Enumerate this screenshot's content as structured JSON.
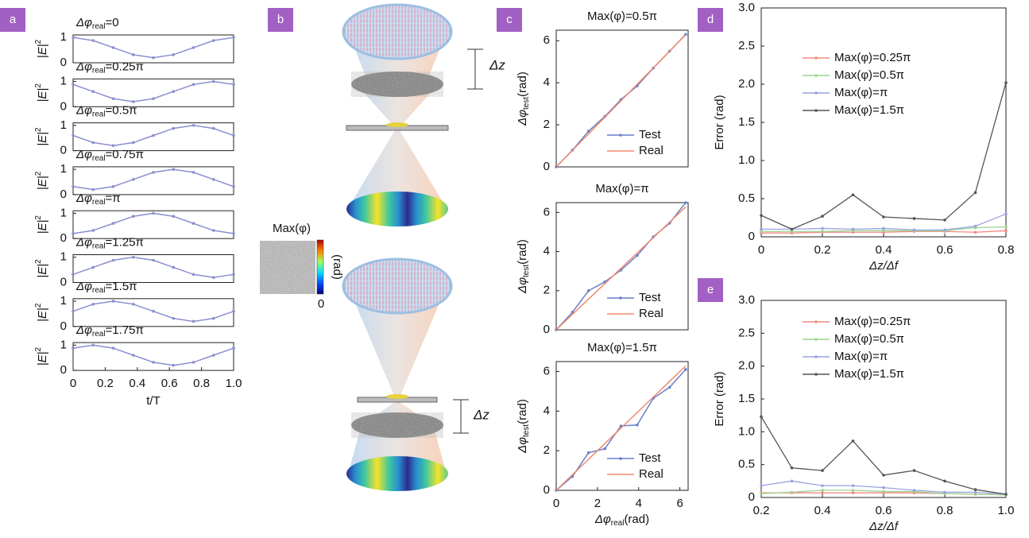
{
  "panels": [
    "a",
    "b",
    "c",
    "d",
    "e"
  ],
  "diagram": {
    "colorbar_title": "Max(φ)",
    "colorbar_unit": "(rad)",
    "colorbar_min": "0",
    "dz_labels": [
      "Δz",
      "Δz"
    ]
  },
  "chart_data": [
    {
      "type": "line",
      "title": {
        "text": "Δφ",
        "sub": "real",
        "after": "=0"
      },
      "ylabel": {
        "text": "|E|",
        "sup": "2"
      },
      "x": [
        0,
        0.125,
        0.25,
        0.375,
        0.5,
        0.625,
        0.75,
        0.875,
        1
      ],
      "values": [
        1,
        0.88,
        0.6,
        0.32,
        0.2,
        0.32,
        0.6,
        0.88,
        1
      ],
      "color": "#8a8fd0",
      "xlim": [
        0,
        1
      ],
      "ylim": [
        0,
        1.1
      ],
      "yticks": [
        0,
        1
      ]
    },
    {
      "type": "line",
      "title": {
        "text": "Δφ",
        "sub": "real",
        "after": "=0.25π"
      },
      "ylabel": {
        "text": "|E|",
        "sup": "2"
      },
      "x": [
        0,
        0.125,
        0.25,
        0.375,
        0.5,
        0.625,
        0.75,
        0.875,
        1
      ],
      "values": [
        0.88,
        0.6,
        0.32,
        0.2,
        0.32,
        0.6,
        0.88,
        1,
        0.88
      ],
      "color": "#8a8fd0",
      "xlim": [
        0,
        1
      ],
      "ylim": [
        0,
        1.1
      ],
      "yticks": [
        0,
        1
      ]
    },
    {
      "type": "line",
      "title": {
        "text": "Δφ",
        "sub": "real",
        "after": "=0.5π"
      },
      "ylabel": {
        "text": "|E|",
        "sup": "2"
      },
      "x": [
        0,
        0.125,
        0.25,
        0.375,
        0.5,
        0.625,
        0.75,
        0.875,
        1
      ],
      "values": [
        0.6,
        0.32,
        0.2,
        0.32,
        0.6,
        0.88,
        1,
        0.88,
        0.6
      ],
      "color": "#8a8fd0",
      "xlim": [
        0,
        1
      ],
      "ylim": [
        0,
        1.1
      ],
      "yticks": [
        0,
        1
      ]
    },
    {
      "type": "line",
      "title": {
        "text": "Δφ",
        "sub": "real",
        "after": "=0.75π"
      },
      "ylabel": {
        "text": "|E|",
        "sup": "2"
      },
      "x": [
        0,
        0.125,
        0.25,
        0.375,
        0.5,
        0.625,
        0.75,
        0.875,
        1
      ],
      "values": [
        0.32,
        0.2,
        0.32,
        0.6,
        0.88,
        1,
        0.88,
        0.6,
        0.32
      ],
      "color": "#8a8fd0",
      "xlim": [
        0,
        1
      ],
      "ylim": [
        0,
        1.1
      ],
      "yticks": [
        0,
        1
      ]
    },
    {
      "type": "line",
      "title": {
        "text": "Δφ",
        "sub": "real",
        "after": "=π"
      },
      "ylabel": {
        "text": "|E|",
        "sup": "2"
      },
      "x": [
        0,
        0.125,
        0.25,
        0.375,
        0.5,
        0.625,
        0.75,
        0.875,
        1
      ],
      "values": [
        0.2,
        0.32,
        0.6,
        0.88,
        1,
        0.88,
        0.6,
        0.32,
        0.2
      ],
      "color": "#8a8fd0",
      "xlim": [
        0,
        1
      ],
      "ylim": [
        0,
        1.1
      ],
      "yticks": [
        0,
        1
      ]
    },
    {
      "type": "line",
      "title": {
        "text": "Δφ",
        "sub": "real",
        "after": "=1.25π"
      },
      "ylabel": {
        "text": "|E|",
        "sup": "2"
      },
      "x": [
        0,
        0.125,
        0.25,
        0.375,
        0.5,
        0.625,
        0.75,
        0.875,
        1
      ],
      "values": [
        0.32,
        0.6,
        0.88,
        1,
        0.88,
        0.6,
        0.32,
        0.2,
        0.32
      ],
      "color": "#8a8fd0",
      "xlim": [
        0,
        1
      ],
      "ylim": [
        0,
        1.1
      ],
      "yticks": [
        0,
        1
      ]
    },
    {
      "type": "line",
      "title": {
        "text": "Δφ",
        "sub": "real",
        "after": "=1.5π"
      },
      "ylabel": {
        "text": "|E|",
        "sup": "2"
      },
      "x": [
        0,
        0.125,
        0.25,
        0.375,
        0.5,
        0.625,
        0.75,
        0.875,
        1
      ],
      "values": [
        0.6,
        0.88,
        1,
        0.88,
        0.6,
        0.32,
        0.2,
        0.32,
        0.6
      ],
      "color": "#8a8fd0",
      "xlim": [
        0,
        1
      ],
      "ylim": [
        0,
        1.1
      ],
      "yticks": [
        0,
        1
      ]
    },
    {
      "type": "line",
      "title": {
        "text": "Δφ",
        "sub": "real",
        "after": "=1.75π"
      },
      "ylabel": {
        "text": "|E|",
        "sup": "2"
      },
      "xlabel": "t/T",
      "x": [
        0,
        0.125,
        0.25,
        0.375,
        0.5,
        0.625,
        0.75,
        0.875,
        1
      ],
      "values": [
        0.88,
        1,
        0.88,
        0.6,
        0.32,
        0.2,
        0.32,
        0.6,
        0.88
      ],
      "color": "#8a8fd0",
      "xlim": [
        0,
        1
      ],
      "ylim": [
        0,
        1.1
      ],
      "yticks": [
        0,
        1
      ],
      "xticks": [
        0,
        0.2,
        0.4,
        0.6,
        0.8,
        {
          "value": 1,
          "label": "1.0"
        }
      ]
    },
    {
      "type": "line",
      "title": "Max(φ)=0.5π",
      "ylabel": {
        "text": "Δφ",
        "sub": "test",
        "after": "(rad)"
      },
      "x": [
        0,
        0.79,
        1.57,
        2.36,
        3.14,
        3.93,
        4.71,
        5.5,
        6.28
      ],
      "legend": "lower right",
      "xlim": [
        0,
        6.4
      ],
      "ylim": [
        0,
        6.5
      ],
      "yticks": [
        0,
        2,
        4,
        6
      ],
      "series": [
        {
          "name": "Test",
          "color": "#6b7fc9",
          "markers": true,
          "values": [
            0,
            0.8,
            1.7,
            2.4,
            3.2,
            3.85,
            4.7,
            5.5,
            6.3
          ]
        },
        {
          "name": "Real",
          "color": "#f08a6e",
          "markers": false,
          "values": [
            0,
            0.79,
            1.57,
            2.36,
            3.14,
            3.93,
            4.71,
            5.5,
            6.28
          ]
        }
      ]
    },
    {
      "type": "line",
      "title": "Max(φ)=π",
      "ylabel": {
        "text": "Δφ",
        "sub": "test",
        "after": "(rad)"
      },
      "x": [
        0,
        0.79,
        1.57,
        2.36,
        3.14,
        3.93,
        4.71,
        5.5,
        6.28
      ],
      "legend": "lower right",
      "xlim": [
        0,
        6.4
      ],
      "ylim": [
        0,
        6.5
      ],
      "yticks": [
        0,
        2,
        4,
        6
      ],
      "series": [
        {
          "name": "Test",
          "color": "#6b7fc9",
          "markers": true,
          "values": [
            0,
            0.9,
            2.0,
            2.45,
            3.05,
            3.8,
            4.75,
            5.45,
            6.5
          ]
        },
        {
          "name": "Real",
          "color": "#f08a6e",
          "markers": false,
          "values": [
            0,
            0.79,
            1.57,
            2.36,
            3.14,
            3.93,
            4.71,
            5.5,
            6.28
          ]
        }
      ]
    },
    {
      "type": "line",
      "title": "Max(φ)=1.5π",
      "ylabel": {
        "text": "Δφ",
        "sub": "test",
        "after": "(rad)"
      },
      "xlabel": {
        "text": "Δφ",
        "sub": "real",
        "after": "(rad)"
      },
      "x": [
        0,
        0.79,
        1.57,
        2.36,
        3.14,
        3.93,
        4.71,
        5.5,
        6.28
      ],
      "legend": "lower right",
      "xlim": [
        0,
        6.4
      ],
      "ylim": [
        0,
        6.5
      ],
      "yticks": [
        0,
        2,
        4,
        6
      ],
      "xticks": [
        0,
        2,
        4,
        6
      ],
      "series": [
        {
          "name": "Test",
          "color": "#6b7fc9",
          "markers": true,
          "values": [
            0,
            0.7,
            1.9,
            2.1,
            3.25,
            3.3,
            4.65,
            5.2,
            6.1
          ]
        },
        {
          "name": "Real",
          "color": "#f08a6e",
          "markers": false,
          "values": [
            0,
            0.79,
            1.57,
            2.36,
            3.14,
            3.93,
            4.71,
            5.5,
            6.28
          ]
        }
      ]
    },
    {
      "type": "line",
      "ylabel": "Error (rad)",
      "xlabel": "Δz/Δf",
      "x": [
        0,
        0.1,
        0.2,
        0.3,
        0.4,
        0.5,
        0.6,
        0.7,
        0.8
      ],
      "legend": "upper left",
      "xlim": [
        0,
        0.8
      ],
      "ylim": [
        0,
        3
      ],
      "xticks": [
        0,
        0.2,
        0.4,
        0.6,
        0.8
      ],
      "yticks": [
        0,
        0.5,
        {
          "value": 1,
          "label": "1.0"
        },
        1.5,
        {
          "value": 2,
          "label": "2.0"
        },
        2.5,
        {
          "value": 3,
          "label": "3.0"
        }
      ],
      "series": [
        {
          "name": "Max(φ)=0.25π",
          "color": "#f08a80",
          "markers": true,
          "values": [
            0.05,
            0.05,
            0.06,
            0.06,
            0.06,
            0.07,
            0.07,
            0.06,
            0.08
          ]
        },
        {
          "name": "Max(φ)=0.5π",
          "color": "#9bd48f",
          "markers": true,
          "values": [
            0.07,
            0.07,
            0.07,
            0.08,
            0.08,
            0.08,
            0.08,
            0.12,
            0.13
          ]
        },
        {
          "name": "Max(φ)=π",
          "color": "#9aa2e0",
          "markers": true,
          "values": [
            0.1,
            0.1,
            0.11,
            0.1,
            0.11,
            0.09,
            0.09,
            0.14,
            0.3
          ]
        },
        {
          "name": "Max(φ)=1.5π",
          "color": "#555555",
          "markers": true,
          "values": [
            0.28,
            0.1,
            0.27,
            0.55,
            0.26,
            0.24,
            0.22,
            0.58,
            2.02
          ]
        }
      ]
    },
    {
      "type": "line",
      "ylabel": "Error (rad)",
      "xlabel": "Δz/Δf",
      "x": [
        0.2,
        0.3,
        0.4,
        0.5,
        0.6,
        0.7,
        0.8,
        0.9,
        1
      ],
      "legend": "upper left",
      "xlim": [
        0.2,
        1
      ],
      "ylim": [
        0,
        3
      ],
      "xticks": [
        0.2,
        0.4,
        0.6,
        0.8,
        {
          "value": 1,
          "label": "1.0"
        }
      ],
      "yticks": [
        0,
        0.5,
        {
          "value": 1,
          "label": "1.0"
        },
        1.5,
        {
          "value": 2,
          "label": "2.0"
        },
        2.5,
        {
          "value": 3,
          "label": "3.0"
        }
      ],
      "series": [
        {
          "name": "Max(φ)=0.25π",
          "color": "#f08a80",
          "markers": true,
          "values": [
            0.07,
            0.07,
            0.07,
            0.07,
            0.07,
            0.07,
            0.06,
            0.05,
            0.04
          ]
        },
        {
          "name": "Max(φ)=0.5π",
          "color": "#9bd48f",
          "markers": true,
          "values": [
            0.06,
            0.08,
            0.11,
            0.11,
            0.09,
            0.09,
            0.06,
            0.05,
            0.04
          ]
        },
        {
          "name": "Max(φ)=π",
          "color": "#9aa2e0",
          "markers": true,
          "values": [
            0.18,
            0.25,
            0.18,
            0.18,
            0.15,
            0.11,
            0.08,
            0.08,
            0.05
          ]
        },
        {
          "name": "Max(φ)=1.5π",
          "color": "#555555",
          "markers": true,
          "values": [
            1.23,
            0.45,
            0.41,
            0.86,
            0.34,
            0.41,
            0.25,
            0.12,
            0.05
          ]
        }
      ]
    }
  ]
}
